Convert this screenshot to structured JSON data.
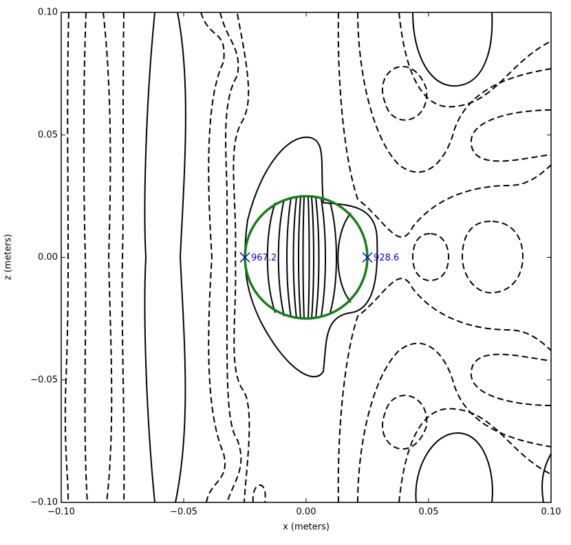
{
  "chart_data": {
    "type": "contour",
    "xlabel": "x (meters)",
    "ylabel": "z (meters)",
    "xlim": [
      -0.1,
      0.1
    ],
    "ylim": [
      -0.1,
      0.1
    ],
    "xticks": [
      {
        "value": -0.1,
        "label": "−0.10"
      },
      {
        "value": -0.05,
        "label": "−0.05"
      },
      {
        "value": 0,
        "label": "0.00"
      },
      {
        "value": 0.05,
        "label": "0.05"
      },
      {
        "value": 0.1,
        "label": "0.10"
      }
    ],
    "yticks": [
      {
        "value": -0.1,
        "label": "−0.10"
      },
      {
        "value": -0.05,
        "label": "−0.05"
      },
      {
        "value": 0,
        "label": "0.00"
      },
      {
        "value": 0.05,
        "label": "0.05"
      },
      {
        "value": 0.1,
        "label": "0.10"
      }
    ],
    "circle": {
      "x": 0,
      "y": 0,
      "radius": 0.025,
      "color": "#138013"
    },
    "points": [
      {
        "x": -0.025,
        "y": 0,
        "value": 967.2
      },
      {
        "x": 0.025,
        "y": 0,
        "value": 928.6
      }
    ],
    "point_color": "#0000cc"
  }
}
